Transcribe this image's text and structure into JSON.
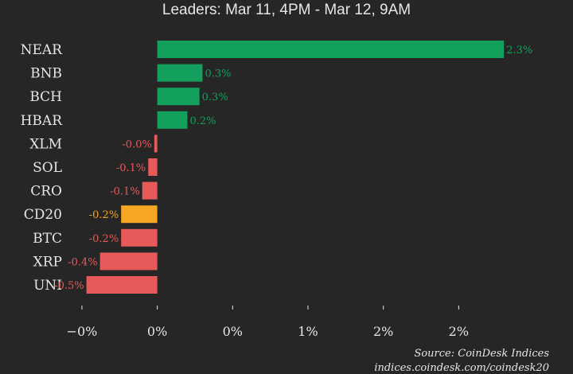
{
  "chart_data": {
    "type": "bar",
    "orientation": "horizontal",
    "title": "Leaders: Mar 11, 4PM - Mar 12, 9AM",
    "categories": [
      "NEAR",
      "BNB",
      "BCH",
      "HBAR",
      "XLM",
      "SOL",
      "CRO",
      "CD20",
      "BTC",
      "XRP",
      "UNI"
    ],
    "values": [
      2.3,
      0.3,
      0.28,
      0.2,
      -0.02,
      -0.06,
      -0.1,
      -0.24,
      -0.24,
      -0.38,
      -0.47
    ],
    "value_labels": [
      "2.3%",
      "0.3%",
      "0.3%",
      "0.2%",
      "-0.0%",
      "-0.1%",
      "-0.1%",
      "-0.2%",
      "-0.2%",
      "-0.4%",
      "-0.5%"
    ],
    "xlim": [
      -0.6,
      2.6
    ],
    "x_ticks": [
      -0.5,
      0,
      0.5,
      1,
      1.5,
      2
    ],
    "x_tick_labels": [
      "−0%",
      "0%",
      "0%",
      "1%",
      "2%",
      "2%"
    ],
    "grid": false,
    "legend": "none",
    "colors": {
      "positive": "#12a05c",
      "negative": "#e85a5a",
      "index": "#f5a623",
      "background": "#262626",
      "text": "#e6e6e6"
    },
    "highlight_category": "CD20"
  },
  "source": {
    "line1": "Source: CoinDesk Indices",
    "line2": "indices.coindesk.com/coindesk20"
  }
}
